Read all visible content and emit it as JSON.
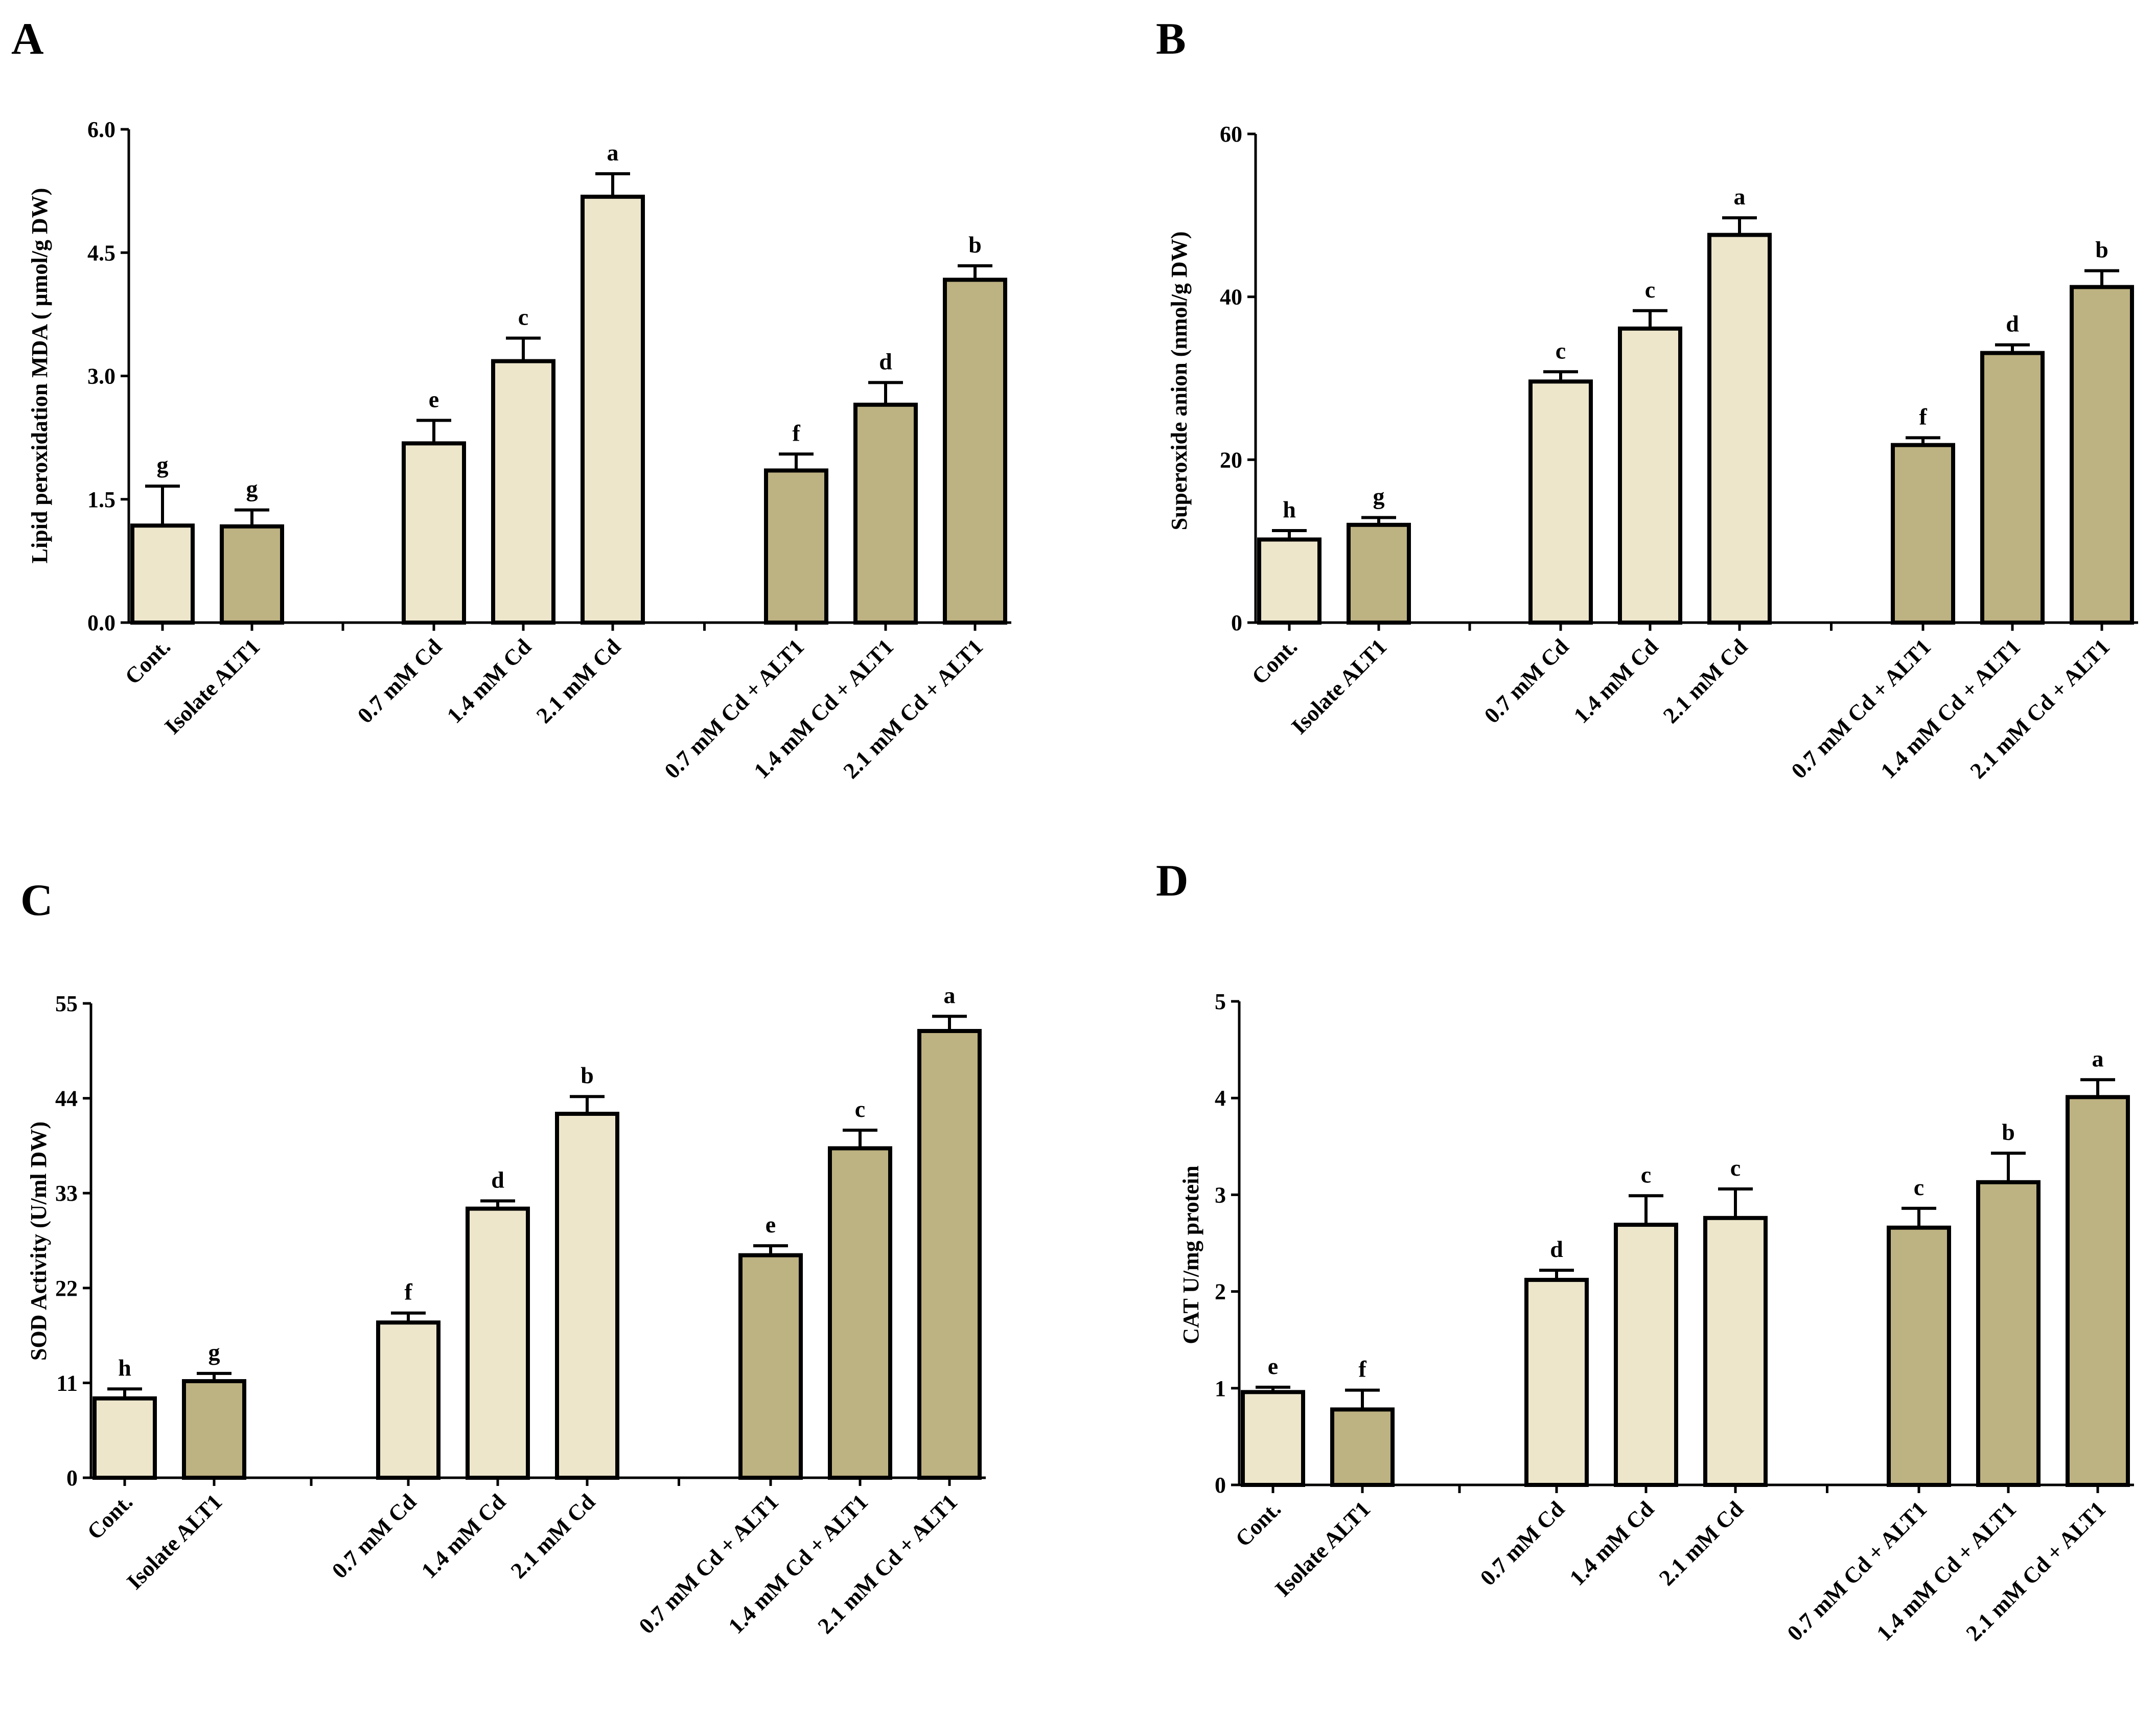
{
  "colors": {
    "control_bar": "#ede6cb",
    "alt1_bar": "#bdb281",
    "axis": "#000000",
    "background": "#ffffff"
  },
  "chart_data": [
    {
      "panel": "A",
      "type": "bar",
      "ylabel": "Lipid peroxidation MDA ( µmol/g DW)",
      "ylim": [
        0,
        6.0
      ],
      "yticks": [
        "0.0",
        "1.5",
        "3.0",
        "4.5",
        "6.0"
      ],
      "categories": [
        "Cont.",
        "Isolate ALT1",
        "0.7 mM Cd",
        "1.4 mM Cd",
        "2.1 mM Cd",
        "0.7 mM Cd + ALT1",
        "1.4 mM Cd + ALT1",
        "2.1 mM Cd + ALT1"
      ],
      "groups": [
        0,
        0,
        1,
        1,
        1,
        2,
        2,
        2
      ],
      "values": [
        1.18,
        1.17,
        2.18,
        3.18,
        5.18,
        1.85,
        2.65,
        4.17
      ],
      "errors": [
        0.48,
        0.2,
        0.28,
        0.28,
        0.28,
        0.2,
        0.27,
        0.17
      ],
      "letters": [
        "g",
        "g",
        "e",
        "c",
        "a",
        "f",
        "d",
        "b"
      ],
      "fills": [
        "light",
        "dark",
        "light",
        "light",
        "light",
        "dark",
        "dark",
        "dark"
      ]
    },
    {
      "panel": "B",
      "type": "bar",
      "ylabel": "Superoxide anion (nmol/g DW)",
      "ylim": [
        0,
        60
      ],
      "yticks": [
        "0",
        "20",
        "40",
        "60"
      ],
      "categories": [
        "Cont.",
        "Isolate ALT1",
        "0.7 mM Cd",
        "1.4 mM Cd",
        "2.1 mM Cd",
        "0.7 mM Cd + ALT1",
        "1.4 mM Cd + ALT1",
        "2.1 mM Cd + ALT1"
      ],
      "groups": [
        0,
        0,
        1,
        1,
        1,
        2,
        2,
        2
      ],
      "values": [
        10.2,
        12.0,
        29.6,
        36.1,
        47.6,
        21.8,
        33.1,
        41.2
      ],
      "errors": [
        1.1,
        0.9,
        1.2,
        2.2,
        2.1,
        0.9,
        1.0,
        2.0
      ],
      "letters": [
        "h",
        "g",
        "c",
        "c",
        "a",
        "f",
        "d",
        "b"
      ],
      "fills": [
        "light",
        "dark",
        "light",
        "light",
        "light",
        "dark",
        "dark",
        "dark"
      ]
    },
    {
      "panel": "C",
      "type": "bar",
      "ylabel": "SOD Activity (U/ml DW)",
      "ylim": [
        0,
        55
      ],
      "yticks": [
        "0",
        "11",
        "22",
        "33",
        "44",
        "55"
      ],
      "categories": [
        "Cont.",
        "Isolate ALT1",
        "0.7 mM Cd",
        "1.4 mM Cd",
        "2.1 mM Cd",
        "0.7 mM Cd + ALT1",
        "1.4 mM Cd + ALT1",
        "2.1 mM Cd + ALT1"
      ],
      "groups": [
        0,
        0,
        1,
        1,
        1,
        2,
        2,
        2
      ],
      "values": [
        9.2,
        11.2,
        18.0,
        31.2,
        42.2,
        25.8,
        38.2,
        51.8
      ],
      "errors": [
        1.1,
        0.9,
        1.1,
        0.9,
        2.0,
        1.1,
        2.1,
        1.7
      ],
      "letters": [
        "h",
        "g",
        "f",
        "d",
        "b",
        "e",
        "c",
        "a"
      ],
      "fills": [
        "light",
        "dark",
        "light",
        "light",
        "light",
        "dark",
        "dark",
        "dark"
      ]
    },
    {
      "panel": "D",
      "type": "bar",
      "ylabel": "CAT U/mg protein",
      "ylim": [
        0,
        5
      ],
      "yticks": [
        "0",
        "1",
        "2",
        "3",
        "4",
        "5"
      ],
      "categories": [
        "Cont.",
        "Isolate ALT1",
        "0.7 mM Cd",
        "1.4 mM Cd",
        "2.1 mM Cd",
        "0.7 mM Cd + ALT1",
        "1.4 mM Cd + ALT1",
        "2.1 mM Cd + ALT1"
      ],
      "groups": [
        0,
        0,
        1,
        1,
        1,
        2,
        2,
        2
      ],
      "values": [
        0.96,
        0.78,
        2.12,
        2.69,
        2.76,
        2.66,
        3.13,
        4.01
      ],
      "errors": [
        0.05,
        0.2,
        0.1,
        0.3,
        0.3,
        0.2,
        0.3,
        0.18
      ],
      "letters": [
        "e",
        "f",
        "d",
        "c",
        "c",
        "c",
        "b",
        "a"
      ],
      "fills": [
        "light",
        "dark",
        "light",
        "light",
        "light",
        "dark",
        "dark",
        "dark"
      ]
    }
  ]
}
